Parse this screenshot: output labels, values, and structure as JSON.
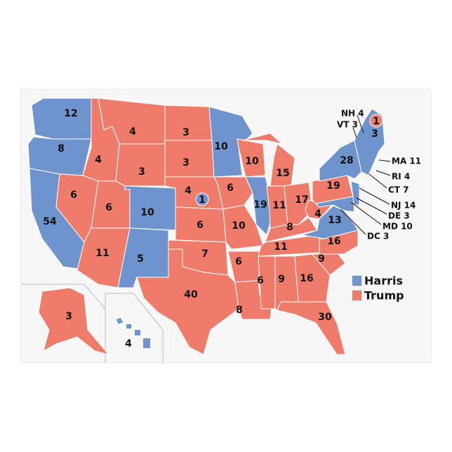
{
  "colors": {
    "harris": "#6f93cd",
    "trump": "#ef7b6b",
    "border": "#ffffff",
    "background": "#f7f7f7"
  },
  "legend": [
    {
      "label": "Harris",
      "party": "harris"
    },
    {
      "label": "Trump",
      "party": "trump"
    }
  ],
  "states": [
    {
      "id": "WA",
      "ev": "12",
      "winner": "harris"
    },
    {
      "id": "OR",
      "ev": "8",
      "winner": "harris"
    },
    {
      "id": "CA",
      "ev": "54",
      "winner": "harris"
    },
    {
      "id": "ID",
      "ev": "4",
      "winner": "trump"
    },
    {
      "id": "NV",
      "ev": "6",
      "winner": "trump"
    },
    {
      "id": "MT",
      "ev": "4",
      "winner": "trump"
    },
    {
      "id": "WY",
      "ev": "3",
      "winner": "trump"
    },
    {
      "id": "UT",
      "ev": "6",
      "winner": "trump"
    },
    {
      "id": "AZ",
      "ev": "11",
      "winner": "trump"
    },
    {
      "id": "CO",
      "ev": "10",
      "winner": "harris"
    },
    {
      "id": "NM",
      "ev": "5",
      "winner": "harris"
    },
    {
      "id": "ND",
      "ev": "3",
      "winner": "trump"
    },
    {
      "id": "SD",
      "ev": "3",
      "winner": "trump"
    },
    {
      "id": "NE",
      "ev": "4",
      "winner": "trump"
    },
    {
      "id": "KS",
      "ev": "6",
      "winner": "trump"
    },
    {
      "id": "OK",
      "ev": "7",
      "winner": "trump"
    },
    {
      "id": "TX",
      "ev": "40",
      "winner": "trump"
    },
    {
      "id": "MN",
      "ev": "10",
      "winner": "harris"
    },
    {
      "id": "IA",
      "ev": "6",
      "winner": "trump"
    },
    {
      "id": "MO",
      "ev": "10",
      "winner": "trump"
    },
    {
      "id": "AR",
      "ev": "6",
      "winner": "trump"
    },
    {
      "id": "LA",
      "ev": "8",
      "winner": "trump"
    },
    {
      "id": "WI",
      "ev": "10",
      "winner": "trump"
    },
    {
      "id": "IL",
      "ev": "19",
      "winner": "harris"
    },
    {
      "id": "MI",
      "ev": "15",
      "winner": "trump"
    },
    {
      "id": "IN",
      "ev": "11",
      "winner": "trump"
    },
    {
      "id": "OH",
      "ev": "17",
      "winner": "trump"
    },
    {
      "id": "KY",
      "ev": "8",
      "winner": "trump"
    },
    {
      "id": "TN",
      "ev": "11",
      "winner": "trump"
    },
    {
      "id": "MS",
      "ev": "6",
      "winner": "trump"
    },
    {
      "id": "AL",
      "ev": "9",
      "winner": "trump"
    },
    {
      "id": "GA",
      "ev": "16",
      "winner": "trump"
    },
    {
      "id": "FL",
      "ev": "30",
      "winner": "trump"
    },
    {
      "id": "SC",
      "ev": "9",
      "winner": "trump"
    },
    {
      "id": "NC",
      "ev": "16",
      "winner": "trump"
    },
    {
      "id": "VA",
      "ev": "13",
      "winner": "harris"
    },
    {
      "id": "WV",
      "ev": "4",
      "winner": "trump"
    },
    {
      "id": "PA",
      "ev": "19",
      "winner": "trump"
    },
    {
      "id": "NY",
      "ev": "28",
      "winner": "harris"
    },
    {
      "id": "NE_NEW",
      "ev": "3",
      "winner": "harris"
    },
    {
      "id": "NJ",
      "ev": "",
      "winner": "harris"
    },
    {
      "id": "MD",
      "ev": "",
      "winner": "harris"
    },
    {
      "id": "AK",
      "ev": "3",
      "winner": "trump"
    },
    {
      "id": "HI",
      "ev": "4",
      "winner": "harris"
    }
  ],
  "districts": [
    {
      "id": "NE-2",
      "ev": "1",
      "winner": "harris"
    },
    {
      "id": "ME-2",
      "ev": "1",
      "winner": "trump"
    }
  ],
  "callouts": [
    {
      "label": "NH 4"
    },
    {
      "label": "VT 3"
    },
    {
      "label": "MA 11"
    },
    {
      "label": "RI 4"
    },
    {
      "label": "CT 7"
    },
    {
      "label": "NJ 14"
    },
    {
      "label": "DE 3"
    },
    {
      "label": "MD 10"
    },
    {
      "label": "DC 3"
    }
  ]
}
